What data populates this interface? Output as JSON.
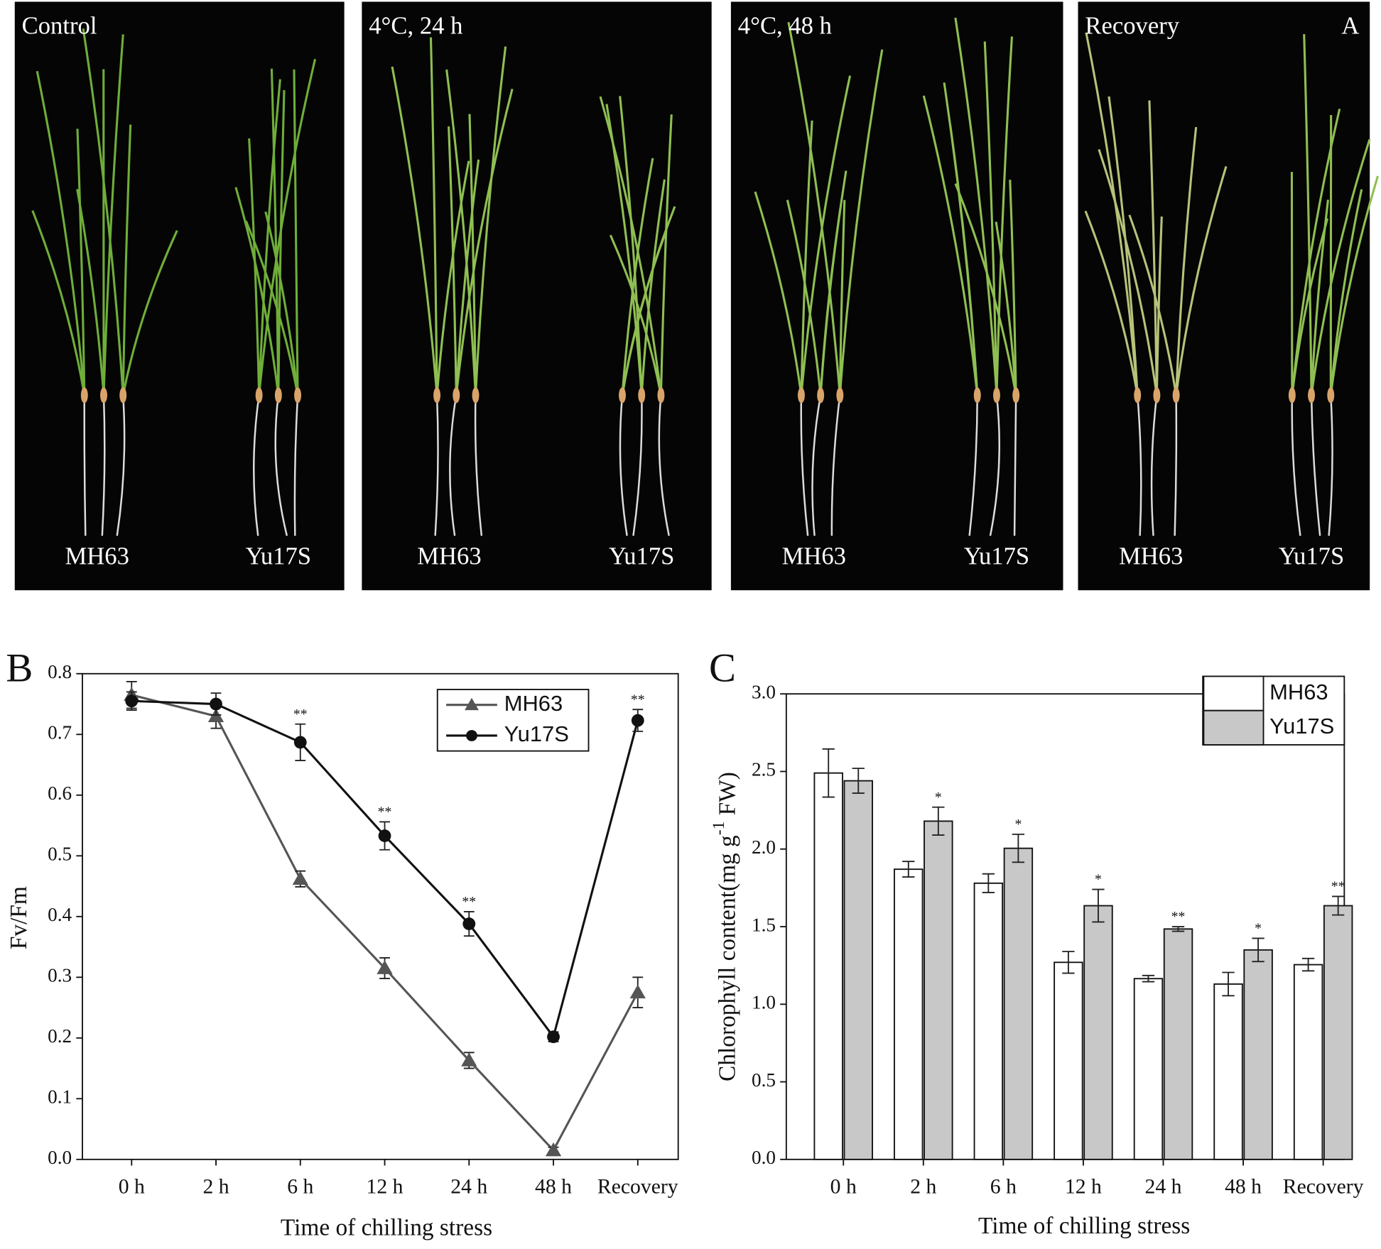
{
  "panel_a": {
    "label": "A",
    "panels": [
      {
        "title": "Control",
        "left": "MH63",
        "right": "Yu17S"
      },
      {
        "title": "4°C, 24 h",
        "left": "MH63",
        "right": "Yu17S"
      },
      {
        "title": "4°C, 48 h",
        "left": "MH63",
        "right": "Yu17S"
      },
      {
        "title": "Recovery",
        "left": "MH63",
        "right": "Yu17S"
      }
    ]
  },
  "chart_data": [
    {
      "type": "line",
      "label": "B",
      "ylabel": "Fv/Fm",
      "xlabel": "Time of chilling stress",
      "categories": [
        "0 h",
        "2 h",
        "6 h",
        "12 h",
        "24 h",
        "48 h",
        "Recovery"
      ],
      "ylim": [
        0,
        0.8
      ],
      "yticks": [
        {
          "value": 0,
          "label": "0.0"
        },
        0.1,
        0.2,
        0.3,
        0.4,
        0.5,
        0.6,
        0.7,
        0.8
      ],
      "legend": "top-right",
      "series": [
        {
          "name": "MH63",
          "color": "#555555",
          "marker": "triangle",
          "values": [
            0.765,
            0.73,
            0.462,
            0.315,
            0.163,
            0.015,
            0.275
          ],
          "errors": [
            0.022,
            0.02,
            0.013,
            0.017,
            0.013,
            0.005,
            0.025
          ]
        },
        {
          "name": "Yu17S",
          "color": "#111111",
          "marker": "circle",
          "values": [
            0.755,
            0.75,
            0.687,
            0.533,
            0.388,
            0.202,
            0.723
          ],
          "errors": [
            0.015,
            0.018,
            0.03,
            0.023,
            0.02,
            0.008,
            0.018
          ],
          "significance": [
            null,
            null,
            "**",
            "**",
            "**",
            null,
            "**"
          ]
        }
      ]
    },
    {
      "type": "bar",
      "label": "C",
      "ylabel": [
        "Chlorophyll content(mg g",
        "-1",
        " FW)"
      ],
      "xlabel": "Time of chilling stress",
      "categories": [
        "0 h",
        "2 h",
        "6 h",
        "12 h",
        "24 h",
        "48 h",
        "Recovery"
      ],
      "ylim": [
        0,
        3
      ],
      "yticks": [
        {
          "value": 0,
          "label": "0.0"
        },
        0.5,
        {
          "value": 1,
          "label": "1.0"
        },
        1.5,
        {
          "value": 2,
          "label": "2.0"
        },
        2.5,
        {
          "value": 3,
          "label": "3.0"
        }
      ],
      "legend": "top-right",
      "series": [
        {
          "name": "MH63",
          "color": "#ffffff",
          "values": [
            2.49,
            1.87,
            1.78,
            1.27,
            1.165,
            1.13,
            1.255
          ],
          "errors": [
            0.155,
            0.05,
            0.06,
            0.07,
            0.02,
            0.075,
            0.04
          ]
        },
        {
          "name": "Yu17S",
          "color": "#c8c8c8",
          "values": [
            2.44,
            2.18,
            2.005,
            1.635,
            1.485,
            1.35,
            1.635
          ],
          "errors": [
            0.08,
            0.09,
            0.09,
            0.105,
            0.015,
            0.075,
            0.06
          ],
          "significance": [
            null,
            "*",
            "*",
            "*",
            "**",
            "*",
            "**"
          ]
        }
      ]
    }
  ]
}
